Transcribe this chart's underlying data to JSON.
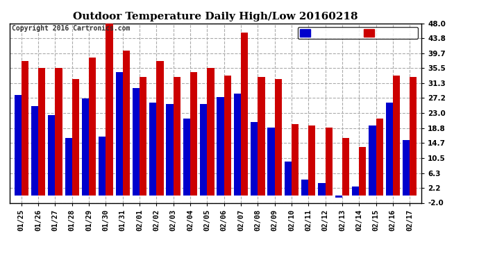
{
  "title": "Outdoor Temperature Daily High/Low 20160218",
  "copyright": "Copyright 2016 Cartronics.com",
  "dates": [
    "01/25",
    "01/26",
    "01/27",
    "01/28",
    "01/29",
    "01/30",
    "01/31",
    "02/01",
    "02/02",
    "02/03",
    "02/04",
    "02/05",
    "02/06",
    "02/07",
    "02/08",
    "02/09",
    "02/10",
    "02/11",
    "02/12",
    "02/13",
    "02/14",
    "02/15",
    "02/16",
    "02/17"
  ],
  "high": [
    37.5,
    35.5,
    35.5,
    32.5,
    38.5,
    48.0,
    40.5,
    33.0,
    37.5,
    33.0,
    34.5,
    35.5,
    33.5,
    45.5,
    33.0,
    32.5,
    20.0,
    19.5,
    19.0,
    16.0,
    13.5,
    21.5,
    33.5,
    33.0
  ],
  "low": [
    28.0,
    25.0,
    22.5,
    16.0,
    27.0,
    16.5,
    34.5,
    30.0,
    26.0,
    25.5,
    21.5,
    25.5,
    27.5,
    28.5,
    20.5,
    19.0,
    9.5,
    4.5,
    3.5,
    -0.5,
    2.5,
    19.5,
    26.0,
    15.5
  ],
  "high_color": "#cc0000",
  "low_color": "#0000cc",
  "bg_color": "#ffffff",
  "grid_color": "#aaaaaa",
  "yticks": [
    -2.0,
    2.2,
    6.3,
    10.5,
    14.7,
    18.8,
    23.0,
    27.2,
    31.3,
    35.5,
    39.7,
    43.8,
    48.0
  ],
  "ylim": [
    -2.0,
    48.0
  ],
  "bar_width": 0.42
}
